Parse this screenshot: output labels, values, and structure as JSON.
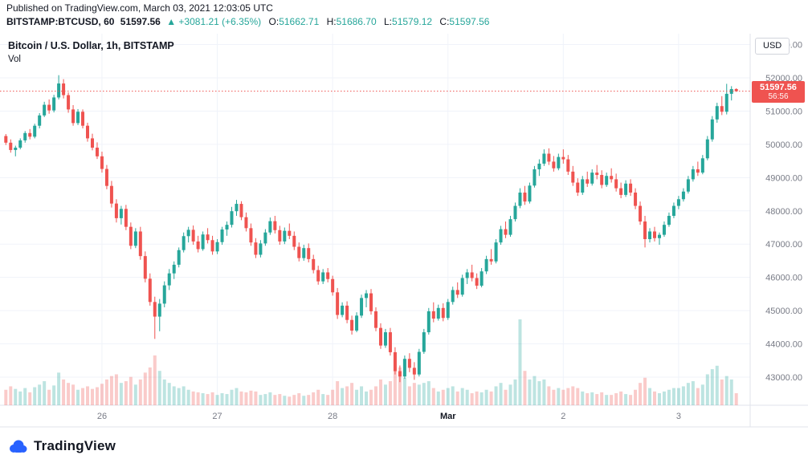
{
  "header": {
    "published": "Published on TradingView.com, March 03, 2021 12:03:05 UTC",
    "symbol": "BITSTAMP:BTCUSD, 60",
    "last_price": "51597.56",
    "change": "▲ +3081.21 (+6.35%)",
    "open_label": "O:",
    "open_value": "51662.71",
    "high_label": "H:",
    "high_value": "51686.70",
    "low_label": "L:",
    "low_value": "51579.12",
    "close_label": "C:",
    "close_value": "51597.56"
  },
  "chart": {
    "legend_title": "Bitcoin / U.S. Dollar, 1h, BITSTAMP",
    "legend_indicator": "Vol",
    "currency_button": "USD",
    "price_tag": {
      "price": "51597.56",
      "countdown": "56:56"
    }
  },
  "footer": {
    "brand": "TradingView"
  },
  "colors": {
    "up": "#26a69a",
    "down": "#ef5350",
    "up_fill_vol": "rgba(38,166,154,0.30)",
    "down_fill_vol": "rgba(239,83,80,0.30)",
    "grid": "#f0f3fa",
    "axis_line": "#e0e3eb",
    "axis_text": "#787b86",
    "emphasis_text": "#131722",
    "last_price_line": "#ef5350",
    "brand_blue": "#2962ff"
  },
  "chart_data": {
    "type": "candlestick",
    "title": "Bitcoin / U.S. Dollar, 1h, BITSTAMP",
    "symbol": "BITSTAMP:BTCUSD",
    "interval": "1h",
    "x_start": "2021-02-25 04:00 UTC",
    "x_end": "2021-03-03 12:00 UTC",
    "last_price": 51597.56,
    "ylim_visible": [
      42500,
      53600
    ],
    "grid": true,
    "price_ticks": [
      {
        "price": 53000,
        "label": "53000.00"
      },
      {
        "price": 52000,
        "label": "52000.00"
      },
      {
        "price": 51000,
        "label": "51000.00"
      },
      {
        "price": 50000,
        "label": "50000.00"
      },
      {
        "price": 49000,
        "label": "49000.00"
      },
      {
        "price": 48000,
        "label": "48000.00"
      },
      {
        "price": 47000,
        "label": "47000.00"
      },
      {
        "price": 46000,
        "label": "46000.00"
      },
      {
        "price": 45000,
        "label": "45000.00"
      },
      {
        "price": 44000,
        "label": "44000.00"
      },
      {
        "price": 43000,
        "label": "43000.00"
      }
    ],
    "time_ticks": [
      {
        "label": "26",
        "candle_index": 20,
        "emphasis": false
      },
      {
        "label": "27",
        "candle_index": 44,
        "emphasis": false
      },
      {
        "label": "28",
        "candle_index": 68,
        "emphasis": false
      },
      {
        "label": "Mar",
        "candle_index": 92,
        "emphasis": true
      },
      {
        "label": "2",
        "candle_index": 116,
        "emphasis": false
      },
      {
        "label": "3",
        "candle_index": 140,
        "emphasis": false
      }
    ],
    "candles_format": [
      "open",
      "high",
      "low",
      "close",
      "volume"
    ],
    "candles": [
      [
        50250,
        50310,
        49980,
        50050,
        18
      ],
      [
        50050,
        50150,
        49750,
        49830,
        22
      ],
      [
        49830,
        49960,
        49640,
        49900,
        19
      ],
      [
        49900,
        50180,
        49850,
        50120,
        16
      ],
      [
        50120,
        50400,
        50050,
        50340,
        20
      ],
      [
        50340,
        50460,
        50150,
        50230,
        15
      ],
      [
        50230,
        50620,
        50180,
        50560,
        21
      ],
      [
        50560,
        50940,
        50480,
        50870,
        24
      ],
      [
        50870,
        51280,
        50820,
        51190,
        28
      ],
      [
        51190,
        51350,
        50920,
        51020,
        18
      ],
      [
        51020,
        51490,
        50960,
        51410,
        23
      ],
      [
        51410,
        52080,
        51350,
        51830,
        38
      ],
      [
        51830,
        51960,
        51380,
        51480,
        30
      ],
      [
        51480,
        51560,
        50950,
        51050,
        26
      ],
      [
        51050,
        51180,
        50560,
        50640,
        24
      ],
      [
        50640,
        51060,
        50580,
        50980,
        18
      ],
      [
        50980,
        51050,
        50480,
        50560,
        20
      ],
      [
        50560,
        50650,
        50080,
        50180,
        22
      ],
      [
        50180,
        50320,
        49820,
        49900,
        19
      ],
      [
        49900,
        50060,
        49560,
        49640,
        21
      ],
      [
        49640,
        49780,
        49150,
        49260,
        25
      ],
      [
        49260,
        49380,
        48650,
        48750,
        30
      ],
      [
        48750,
        48900,
        48100,
        48220,
        34
      ],
      [
        48220,
        48350,
        47650,
        47780,
        36
      ],
      [
        47780,
        48150,
        47590,
        48060,
        26
      ],
      [
        48060,
        48180,
        47420,
        47520,
        28
      ],
      [
        47520,
        47650,
        46850,
        46950,
        33
      ],
      [
        46950,
        47480,
        46880,
        47380,
        24
      ],
      [
        47380,
        47520,
        46530,
        46640,
        30
      ],
      [
        46640,
        46780,
        45850,
        45960,
        38
      ],
      [
        45960,
        46120,
        45150,
        45260,
        44
      ],
      [
        45260,
        45420,
        44150,
        44820,
        58
      ],
      [
        44820,
        45350,
        44380,
        45210,
        40
      ],
      [
        45210,
        45880,
        45100,
        45760,
        30
      ],
      [
        45760,
        46250,
        45620,
        46120,
        26
      ],
      [
        46120,
        46480,
        45950,
        46380,
        22
      ],
      [
        46380,
        46900,
        46300,
        46820,
        20
      ],
      [
        46820,
        47350,
        46750,
        47240,
        22
      ],
      [
        47240,
        47520,
        47050,
        47430,
        18
      ],
      [
        47430,
        47560,
        46980,
        47080,
        16
      ],
      [
        47080,
        47250,
        46750,
        46850,
        15
      ],
      [
        46850,
        47380,
        46800,
        47290,
        14
      ],
      [
        47290,
        47480,
        47020,
        47120,
        13
      ],
      [
        47120,
        47250,
        46680,
        46780,
        15
      ],
      [
        46780,
        47150,
        46700,
        47060,
        12
      ],
      [
        47060,
        47520,
        46980,
        47440,
        14
      ],
      [
        47440,
        47680,
        47250,
        47580,
        13
      ],
      [
        47580,
        48120,
        47500,
        47990,
        18
      ],
      [
        47990,
        48330,
        47850,
        48210,
        20
      ],
      [
        48210,
        48290,
        47720,
        47810,
        16
      ],
      [
        47810,
        47950,
        47380,
        47480,
        15
      ],
      [
        47480,
        47620,
        46950,
        47050,
        17
      ],
      [
        47050,
        47180,
        46580,
        46680,
        16
      ],
      [
        46680,
        47120,
        46600,
        47020,
        12
      ],
      [
        47020,
        47450,
        46950,
        47350,
        13
      ],
      [
        47350,
        47800,
        47280,
        47690,
        15
      ],
      [
        47690,
        47850,
        47320,
        47420,
        12
      ],
      [
        47420,
        47550,
        46980,
        47080,
        13
      ],
      [
        47080,
        47500,
        47000,
        47400,
        11
      ],
      [
        47400,
        47620,
        47150,
        47250,
        10
      ],
      [
        47250,
        47380,
        46820,
        46920,
        12
      ],
      [
        46920,
        47050,
        46480,
        46580,
        14
      ],
      [
        46580,
        46980,
        46500,
        46880,
        11
      ],
      [
        46880,
        47020,
        46450,
        46550,
        12
      ],
      [
        46550,
        46680,
        46120,
        46220,
        15
      ],
      [
        46220,
        46350,
        45780,
        45880,
        18
      ],
      [
        45880,
        46250,
        45800,
        46150,
        13
      ],
      [
        46150,
        46280,
        45850,
        45950,
        12
      ],
      [
        45950,
        46050,
        45450,
        45550,
        18
      ],
      [
        45550,
        45680,
        44750,
        44870,
        28
      ],
      [
        44870,
        45250,
        44800,
        45150,
        20
      ],
      [
        45150,
        45280,
        44620,
        44720,
        22
      ],
      [
        44720,
        44850,
        44280,
        44400,
        26
      ],
      [
        44400,
        44950,
        44350,
        44850,
        18
      ],
      [
        44850,
        45480,
        44780,
        45380,
        22
      ],
      [
        45380,
        45620,
        45100,
        45520,
        16
      ],
      [
        45520,
        45650,
        44880,
        44980,
        18
      ],
      [
        44980,
        45100,
        44380,
        44480,
        22
      ],
      [
        44480,
        44620,
        43850,
        43950,
        30
      ],
      [
        43950,
        44450,
        43880,
        44350,
        24
      ],
      [
        44350,
        44480,
        43650,
        43750,
        28
      ],
      [
        43750,
        43900,
        43080,
        43180,
        40
      ],
      [
        43180,
        43350,
        42850,
        43020,
        44
      ],
      [
        43020,
        43650,
        42950,
        43550,
        32
      ],
      [
        43550,
        43720,
        43150,
        43280,
        22
      ],
      [
        43280,
        43450,
        42920,
        43080,
        26
      ],
      [
        43080,
        43850,
        43020,
        43760,
        24
      ],
      [
        43760,
        44450,
        43700,
        44350,
        26
      ],
      [
        44350,
        45080,
        44280,
        44980,
        28
      ],
      [
        44980,
        45250,
        44650,
        44760,
        20
      ],
      [
        44760,
        45180,
        44700,
        45080,
        16
      ],
      [
        45080,
        45220,
        44680,
        44780,
        18
      ],
      [
        44780,
        45350,
        44720,
        45260,
        20
      ],
      [
        45260,
        45720,
        45180,
        45620,
        22
      ],
      [
        45620,
        45850,
        45380,
        45480,
        16
      ],
      [
        45480,
        46080,
        45420,
        45980,
        20
      ],
      [
        45980,
        46250,
        45800,
        46150,
        18
      ],
      [
        46150,
        46380,
        45880,
        45980,
        14
      ],
      [
        45980,
        46120,
        45650,
        45750,
        16
      ],
      [
        45750,
        46280,
        45700,
        46180,
        15
      ],
      [
        46180,
        46650,
        46100,
        46550,
        18
      ],
      [
        46550,
        46850,
        46380,
        46480,
        16
      ],
      [
        46480,
        47150,
        46420,
        47050,
        22
      ],
      [
        47050,
        47550,
        46980,
        47450,
        26
      ],
      [
        47450,
        47680,
        47180,
        47280,
        18
      ],
      [
        47280,
        47850,
        47220,
        47750,
        24
      ],
      [
        47750,
        48250,
        47680,
        48150,
        30
      ],
      [
        48150,
        48680,
        48080,
        48550,
        100
      ],
      [
        48550,
        48750,
        48180,
        48280,
        40
      ],
      [
        48280,
        48850,
        48220,
        48760,
        30
      ],
      [
        48760,
        49350,
        48700,
        49250,
        34
      ],
      [
        49250,
        49550,
        49050,
        49420,
        28
      ],
      [
        49420,
        49850,
        49350,
        49720,
        30
      ],
      [
        49720,
        49880,
        49380,
        49480,
        22
      ],
      [
        49480,
        49650,
        49180,
        49280,
        18
      ],
      [
        49280,
        49720,
        49220,
        49620,
        20
      ],
      [
        49620,
        49850,
        49420,
        49550,
        18
      ],
      [
        49550,
        49680,
        49080,
        49180,
        20
      ],
      [
        49180,
        49350,
        48750,
        48850,
        22
      ],
      [
        48850,
        48980,
        48450,
        48550,
        20
      ],
      [
        48550,
        49050,
        48480,
        48950,
        16
      ],
      [
        48950,
        49180,
        48720,
        48820,
        14
      ],
      [
        48820,
        49250,
        48760,
        49150,
        15
      ],
      [
        49150,
        49380,
        48950,
        49080,
        13
      ],
      [
        49080,
        49220,
        48680,
        48780,
        15
      ],
      [
        48780,
        49150,
        48720,
        49050,
        12
      ],
      [
        49050,
        49280,
        48850,
        48950,
        12
      ],
      [
        48950,
        49120,
        48580,
        48680,
        14
      ],
      [
        48680,
        48850,
        48380,
        48480,
        16
      ],
      [
        48480,
        48920,
        48420,
        48820,
        13
      ],
      [
        48820,
        48950,
        48450,
        48550,
        12
      ],
      [
        48550,
        48680,
        48050,
        48150,
        18
      ],
      [
        48150,
        48280,
        47580,
        47680,
        26
      ],
      [
        47680,
        47850,
        46900,
        47150,
        32
      ],
      [
        47150,
        47480,
        47050,
        47380,
        20
      ],
      [
        47380,
        47520,
        47080,
        47180,
        16
      ],
      [
        47180,
        47350,
        46980,
        47280,
        14
      ],
      [
        47280,
        47680,
        47220,
        47580,
        16
      ],
      [
        47580,
        47950,
        47520,
        47850,
        18
      ],
      [
        47850,
        48250,
        47780,
        48150,
        20
      ],
      [
        48150,
        48450,
        48050,
        48350,
        20
      ],
      [
        48350,
        48680,
        48280,
        48580,
        22
      ],
      [
        48580,
        49050,
        48520,
        48950,
        26
      ],
      [
        48950,
        49350,
        48880,
        49250,
        28
      ],
      [
        49250,
        49480,
        49050,
        49150,
        20
      ],
      [
        49150,
        49680,
        49100,
        49580,
        24
      ],
      [
        49580,
        50250,
        49520,
        50150,
        36
      ],
      [
        50150,
        50850,
        50080,
        50750,
        42
      ],
      [
        50750,
        51250,
        50650,
        51150,
        46
      ],
      [
        51150,
        51450,
        50880,
        50980,
        30
      ],
      [
        50980,
        51820,
        50900,
        51520,
        34
      ],
      [
        51520,
        51750,
        51320,
        51662.71,
        30
      ],
      [
        51662.71,
        51686.7,
        51579.12,
        51597.56,
        14
      ]
    ]
  }
}
